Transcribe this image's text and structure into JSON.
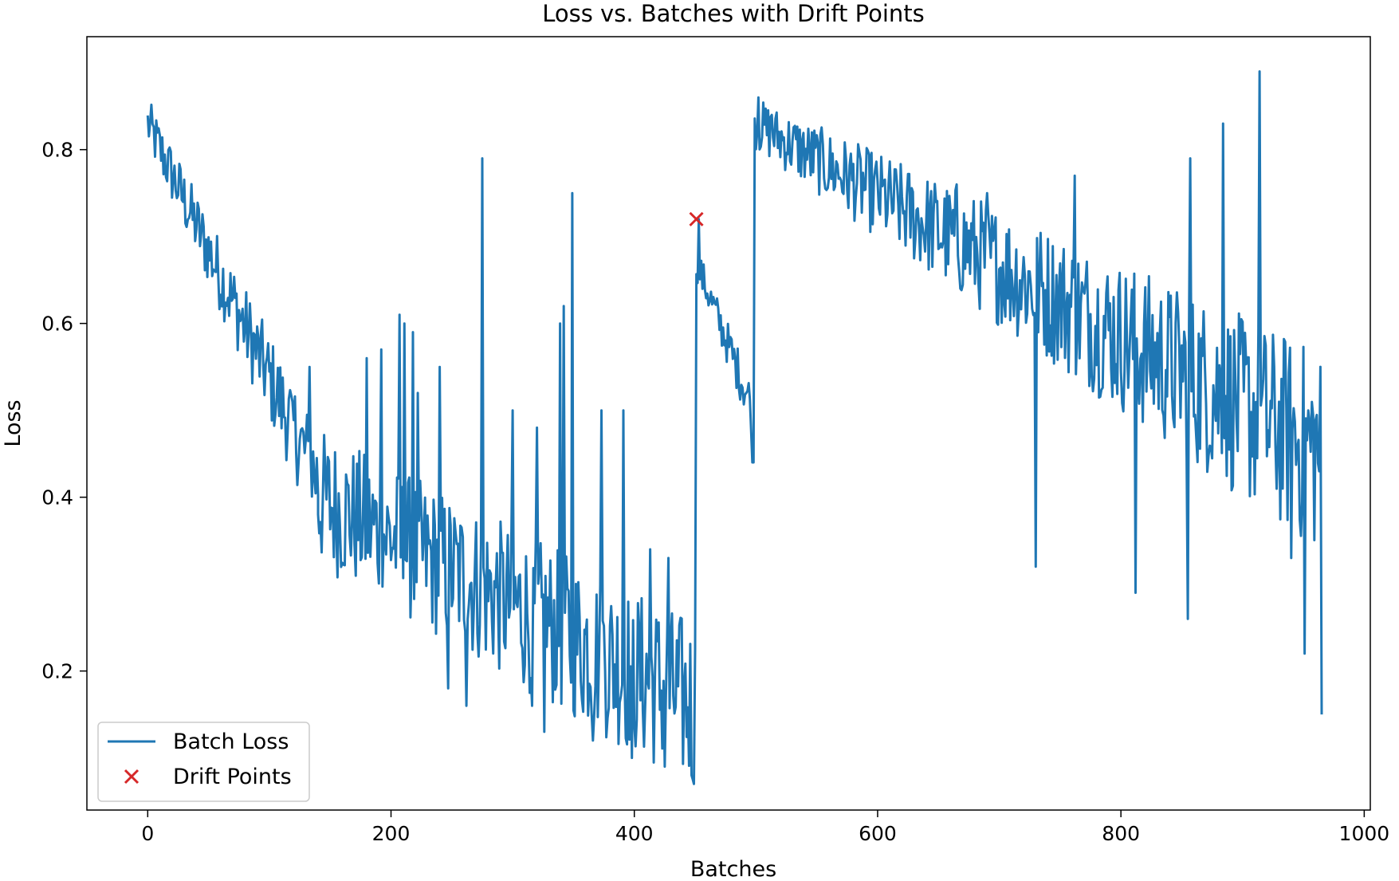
{
  "chart_data": {
    "type": "line",
    "title": "Loss vs. Batches with Drift Points",
    "xlabel": "Batches",
    "ylabel": "Loss",
    "xlim": [
      -50,
      1005
    ],
    "ylim": [
      0.04,
      0.93
    ],
    "xticks": [
      0,
      200,
      400,
      600,
      800,
      1000
    ],
    "yticks": [
      0.2,
      0.4,
      0.6,
      0.8
    ],
    "xtick_labels": [
      "0",
      "200",
      "400",
      "600",
      "800",
      "1000"
    ],
    "ytick_labels": [
      "0.2",
      "0.4",
      "0.6",
      "0.8"
    ],
    "grid": false,
    "legend_position": "lower-left",
    "legend": [
      "Batch Loss",
      "Drift Points"
    ],
    "colors": {
      "line": "#1f77b4",
      "drift": "#d62728"
    },
    "segments": [
      {
        "x_start": 0,
        "x_end": 140,
        "start": 0.83,
        "end": 0.42,
        "noise_start": 0.03,
        "noise_end": 0.06,
        "spikes": [
          [
            133,
            0.55
          ],
          [
            119,
            0.51
          ]
        ]
      },
      {
        "x_start": 140,
        "x_end": 450,
        "start": 0.4,
        "end": 0.16,
        "noise_start": 0.08,
        "noise_end": 0.1,
        "spikes": [
          [
            180,
            0.56
          ],
          [
            192,
            0.57
          ],
          [
            207,
            0.61
          ],
          [
            211,
            0.6
          ],
          [
            218,
            0.59
          ],
          [
            222,
            0.52
          ],
          [
            240,
            0.55
          ],
          [
            275,
            0.79
          ],
          [
            300,
            0.5
          ],
          [
            320,
            0.48
          ],
          [
            339,
            0.6
          ],
          [
            342,
            0.62
          ],
          [
            349,
            0.75
          ],
          [
            373,
            0.5
          ],
          [
            391,
            0.5
          ],
          [
            413,
            0.34
          ],
          [
            428,
            0.33
          ],
          [
            247,
            0.18
          ],
          [
            262,
            0.16
          ],
          [
            316,
            0.16
          ],
          [
            326,
            0.13
          ],
          [
            366,
            0.12
          ],
          [
            398,
            0.1
          ],
          [
            425,
            0.09
          ],
          [
            447,
            0.08
          ],
          [
            449,
            0.07
          ]
        ]
      },
      {
        "x_start": 451,
        "x_end": 498,
        "start": 0.67,
        "end": 0.5,
        "noise_start": 0.02,
        "noise_end": 0.03,
        "spikes": [
          [
            453,
            0.72
          ],
          [
            497,
            0.44
          ],
          [
            498,
            0.44
          ]
        ]
      },
      {
        "x_start": 499,
        "x_end": 965,
        "start": 0.83,
        "end": 0.45,
        "noise_start": 0.03,
        "noise_end": 0.12,
        "spikes": [
          [
            502,
            0.86
          ],
          [
            513,
            0.84
          ],
          [
            665,
            0.76
          ],
          [
            690,
            0.75
          ],
          [
            762,
            0.77
          ],
          [
            857,
            0.79
          ],
          [
            884,
            0.83
          ],
          [
            914,
            0.89
          ],
          [
            730,
            0.32
          ],
          [
            812,
            0.29
          ],
          [
            855,
            0.26
          ],
          [
            940,
            0.33
          ],
          [
            951,
            0.22
          ],
          [
            965,
            0.15
          ]
        ]
      }
    ],
    "drift_points": [
      {
        "x": 451,
        "y": 0.72
      }
    ]
  }
}
